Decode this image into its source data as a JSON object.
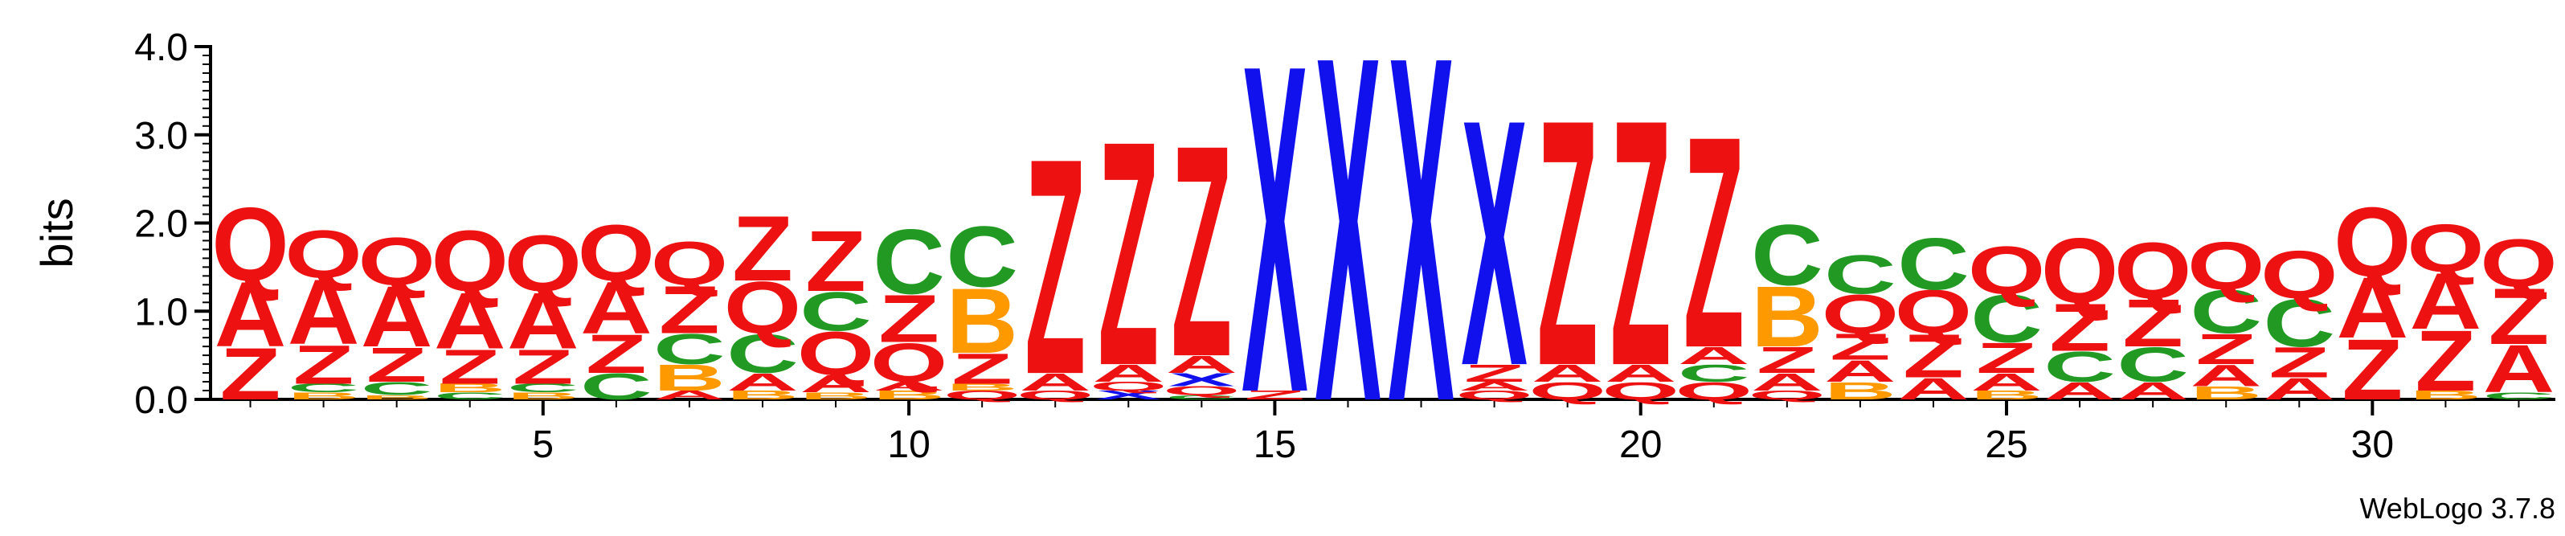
{
  "chart_data": {
    "type": "sequence-logo",
    "ylabel": "bits",
    "ylim": [
      0,
      4.0
    ],
    "y_ticks": [
      "0.0",
      "1.0",
      "2.0",
      "3.0",
      "4.0"
    ],
    "x_ticks": [
      5,
      10,
      15,
      20,
      25,
      30
    ],
    "footer": "WebLogo 3.7.8",
    "colors": {
      "Q": "#ee1111",
      "A": "#ee1111",
      "Z": "#ee1111",
      "C": "#229922",
      "B": "#ff9900",
      "X": "#1111ee"
    },
    "positions": [
      {
        "pos": 1,
        "letters": [
          [
            "Z",
            0.6
          ],
          [
            "A",
            0.75
          ],
          [
            "Q",
            0.85
          ]
        ]
      },
      {
        "pos": 2,
        "letters": [
          [
            "B",
            0.08
          ],
          [
            "C",
            0.1
          ],
          [
            "Z",
            0.45
          ],
          [
            "A",
            0.75
          ],
          [
            "Q",
            0.55
          ]
        ]
      },
      {
        "pos": 3,
        "letters": [
          [
            "B",
            0.05
          ],
          [
            "C",
            0.15
          ],
          [
            "Z",
            0.4
          ],
          [
            "A",
            0.7
          ],
          [
            "Q",
            0.55
          ]
        ]
      },
      {
        "pos": 4,
        "letters": [
          [
            "C",
            0.08
          ],
          [
            "B",
            0.1
          ],
          [
            "Z",
            0.4
          ],
          [
            "A",
            0.65
          ],
          [
            "Q",
            0.7
          ]
        ]
      },
      {
        "pos": 5,
        "letters": [
          [
            "B",
            0.08
          ],
          [
            "C",
            0.1
          ],
          [
            "Z",
            0.4
          ],
          [
            "A",
            0.65
          ],
          [
            "Q",
            0.65
          ]
        ]
      },
      {
        "pos": 6,
        "letters": [
          [
            "C",
            0.3
          ],
          [
            "Z",
            0.45
          ],
          [
            "A",
            0.6
          ],
          [
            "Q",
            0.65
          ]
        ]
      },
      {
        "pos": 7,
        "letters": [
          [
            "A",
            0.1
          ],
          [
            "B",
            0.3
          ],
          [
            "C",
            0.35
          ],
          [
            "Z",
            0.55
          ],
          [
            "Q",
            0.5
          ]
        ]
      },
      {
        "pos": 8,
        "letters": [
          [
            "B",
            0.1
          ],
          [
            "A",
            0.2
          ],
          [
            "C",
            0.45
          ],
          [
            "Q",
            0.6
          ],
          [
            "Z",
            0.75
          ]
        ]
      },
      {
        "pos": 9,
        "letters": [
          [
            "B",
            0.08
          ],
          [
            "A",
            0.2
          ],
          [
            "Q",
            0.5
          ],
          [
            "C",
            0.45
          ],
          [
            "Z",
            0.7
          ]
        ]
      },
      {
        "pos": 10,
        "letters": [
          [
            "B",
            0.1
          ],
          [
            "A",
            0.1
          ],
          [
            "Q",
            0.45
          ],
          [
            "Z",
            0.55
          ],
          [
            "C",
            0.75
          ]
        ]
      },
      {
        "pos": 11,
        "letters": [
          [
            "Q",
            0.1
          ],
          [
            "B",
            0.08
          ],
          [
            "Z",
            0.35
          ],
          [
            "B",
            0.75
          ],
          [
            "C",
            0.7
          ]
        ]
      },
      {
        "pos": 12,
        "letters": [
          [
            "Q",
            0.1
          ],
          [
            "A",
            0.2
          ],
          [
            "Z",
            2.5
          ]
        ]
      },
      {
        "pos": 13,
        "letters": [
          [
            "X",
            0.1
          ],
          [
            "Q",
            0.1
          ],
          [
            "A",
            0.2
          ],
          [
            "Z",
            2.6
          ]
        ]
      },
      {
        "pos": 14,
        "letters": [
          [
            "C",
            0.05
          ],
          [
            "Q",
            0.1
          ],
          [
            "X",
            0.15
          ],
          [
            "A",
            0.2
          ],
          [
            "Z",
            2.45
          ]
        ]
      },
      {
        "pos": 15,
        "letters": [
          [
            "Z",
            0.1
          ],
          [
            "X",
            3.8
          ]
        ]
      },
      {
        "pos": 16,
        "letters": [
          [
            "X",
            4.0
          ]
        ]
      },
      {
        "pos": 17,
        "letters": [
          [
            "X",
            4.0
          ]
        ]
      },
      {
        "pos": 18,
        "letters": [
          [
            "Q",
            0.1
          ],
          [
            "A",
            0.1
          ],
          [
            "Z",
            0.2
          ],
          [
            "X",
            2.85
          ]
        ]
      },
      {
        "pos": 19,
        "letters": [
          [
            "Q",
            0.2
          ],
          [
            "A",
            0.2
          ],
          [
            "Z",
            2.85
          ]
        ]
      },
      {
        "pos": 20,
        "letters": [
          [
            "Q",
            0.2
          ],
          [
            "A",
            0.2
          ],
          [
            "Z",
            2.85
          ]
        ]
      },
      {
        "pos": 21,
        "letters": [
          [
            "Q",
            0.2
          ],
          [
            "C",
            0.2
          ],
          [
            "A",
            0.2
          ],
          [
            "Z",
            2.45
          ]
        ]
      },
      {
        "pos": 22,
        "letters": [
          [
            "Q",
            0.1
          ],
          [
            "A",
            0.2
          ],
          [
            "Z",
            0.3
          ],
          [
            "B",
            0.7
          ],
          [
            "C",
            0.7
          ]
        ]
      },
      {
        "pos": 23,
        "letters": [
          [
            "B",
            0.2
          ],
          [
            "A",
            0.25
          ],
          [
            "Z",
            0.3
          ],
          [
            "Q",
            0.45
          ],
          [
            "C",
            0.45
          ]
        ]
      },
      {
        "pos": 24,
        "letters": [
          [
            "A",
            0.25
          ],
          [
            "Z",
            0.5
          ],
          [
            "Q",
            0.5
          ],
          [
            "C",
            0.6
          ]
        ]
      },
      {
        "pos": 25,
        "letters": [
          [
            "B",
            0.1
          ],
          [
            "A",
            0.2
          ],
          [
            "Z",
            0.35
          ],
          [
            "C",
            0.55
          ],
          [
            "Q",
            0.55
          ]
        ]
      },
      {
        "pos": 26,
        "letters": [
          [
            "A",
            0.2
          ],
          [
            "C",
            0.35
          ],
          [
            "Z",
            0.55
          ],
          [
            "Q",
            0.75
          ]
        ]
      },
      {
        "pos": 27,
        "letters": [
          [
            "A",
            0.2
          ],
          [
            "C",
            0.4
          ],
          [
            "Z",
            0.55
          ],
          [
            "Q",
            0.65
          ]
        ]
      },
      {
        "pos": 28,
        "letters": [
          [
            "B",
            0.15
          ],
          [
            "A",
            0.25
          ],
          [
            "Z",
            0.35
          ],
          [
            "C",
            0.5
          ],
          [
            "Q",
            0.55
          ]
        ]
      },
      {
        "pos": 29,
        "letters": [
          [
            "A",
            0.25
          ],
          [
            "Z",
            0.35
          ],
          [
            "C",
            0.55
          ],
          [
            "Q",
            0.55
          ]
        ]
      },
      {
        "pos": 30,
        "letters": [
          [
            "Z",
            0.7
          ],
          [
            "A",
            0.7
          ],
          [
            "Q",
            0.8
          ]
        ]
      },
      {
        "pos": 31,
        "letters": [
          [
            "B",
            0.1
          ],
          [
            "Z",
            0.7
          ],
          [
            "A",
            0.65
          ],
          [
            "Q",
            0.55
          ]
        ]
      },
      {
        "pos": 32,
        "letters": [
          [
            "C",
            0.08
          ],
          [
            "A",
            0.55
          ],
          [
            "Z",
            0.65
          ],
          [
            "Q",
            0.55
          ]
        ]
      }
    ]
  }
}
